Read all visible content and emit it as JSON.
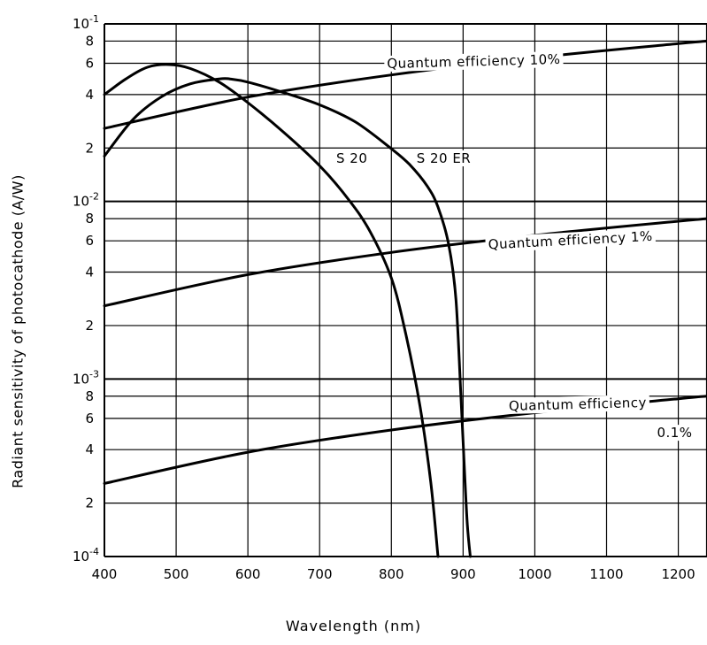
{
  "chart_data": {
    "type": "line",
    "xlabel": "Wavelength (nm)",
    "ylabel": "Radiant sensitivity of photocathode (A/W)",
    "xlim": [
      400,
      1240
    ],
    "ylim": [
      0.0001,
      0.1
    ],
    "y_scale": "log",
    "grid": true,
    "x_ticks": [
      "400",
      "500",
      "600",
      "700",
      "800",
      "900",
      "1000",
      "1100",
      "1200"
    ],
    "x_tick_values": [
      400,
      500,
      600,
      700,
      800,
      900,
      1000,
      1100,
      1200
    ],
    "y_ticks": [
      {
        "value": 0.1,
        "base": "10",
        "exp": "-1"
      },
      {
        "value": 0.08,
        "label": "8"
      },
      {
        "value": 0.06,
        "label": "6"
      },
      {
        "value": 0.04,
        "label": "4"
      },
      {
        "value": 0.02,
        "label": "2"
      },
      {
        "value": 0.01,
        "base": "10",
        "exp": "-2"
      },
      {
        "value": 0.008,
        "label": "8"
      },
      {
        "value": 0.006,
        "label": "6"
      },
      {
        "value": 0.004,
        "label": "4"
      },
      {
        "value": 0.002,
        "label": "2"
      },
      {
        "value": 0.001,
        "base": "10",
        "exp": "-3"
      },
      {
        "value": 0.0008,
        "label": "8"
      },
      {
        "value": 0.0006,
        "label": "6"
      },
      {
        "value": 0.0004,
        "label": "4"
      },
      {
        "value": 0.0002,
        "label": "2"
      },
      {
        "value": 0.0001,
        "base": "10",
        "exp": "-4"
      }
    ],
    "series": [
      {
        "name": "S 20",
        "kind": "spectral",
        "x": [
          400,
          430,
          460,
          490,
          520,
          560,
          600,
          650,
          700,
          740,
          770,
          800,
          820,
          840,
          855,
          865
        ],
        "y": [
          0.04,
          0.049,
          0.057,
          0.059,
          0.056,
          0.047,
          0.036,
          0.0245,
          0.0159,
          0.0103,
          0.0068,
          0.0037,
          0.0018,
          0.0007,
          0.00026,
          0.0001
        ]
      },
      {
        "name": "S 20 ER",
        "kind": "spectral",
        "x": [
          400,
          440,
          480,
          520,
          560,
          575,
          600,
          650,
          700,
          750,
          800,
          825,
          850,
          865,
          880,
          890,
          897,
          902,
          906,
          910
        ],
        "y": [
          0.018,
          0.029,
          0.039,
          0.046,
          0.049,
          0.049,
          0.047,
          0.041,
          0.035,
          0.028,
          0.0198,
          0.0162,
          0.0122,
          0.0093,
          0.0057,
          0.0028,
          0.0008,
          0.0003,
          0.00015,
          0.0001
        ]
      },
      {
        "name": "Quantum efficiency 10%",
        "kind": "qe",
        "x": [
          400,
          600,
          800,
          1000,
          1200,
          1240
        ],
        "y": [
          0.0258,
          0.0387,
          0.0516,
          0.0645,
          0.0774,
          0.08
        ]
      },
      {
        "name": "Quantum efficiency 1%",
        "kind": "qe",
        "x": [
          400,
          600,
          800,
          1000,
          1200,
          1240
        ],
        "y": [
          0.00258,
          0.00387,
          0.00516,
          0.00645,
          0.00774,
          0.008
        ]
      },
      {
        "name": "Quantum efficiency 0.1%",
        "kind": "qe",
        "x": [
          400,
          600,
          800,
          1000,
          1200,
          1240
        ],
        "y": [
          0.000258,
          0.000387,
          0.000516,
          0.000645,
          0.000774,
          0.0008
        ]
      }
    ],
    "annotations": [
      {
        "text": "Quantum efficiency   10%",
        "x": 915,
        "y": 0.058,
        "rotate": -1.5,
        "anchor": "middle"
      },
      {
        "text": "Quantum efficiency  1%",
        "x": 1050,
        "y": 0.0057,
        "rotate": -3,
        "anchor": "middle"
      },
      {
        "text": "Quantum efficiency",
        "x": 1060,
        "y": 0.00068,
        "rotate": -1.5,
        "anchor": "middle"
      },
      {
        "text": "0.1%",
        "x": 1195,
        "y": 0.00047,
        "rotate": 0,
        "anchor": "middle"
      },
      {
        "text": "S 20",
        "x": 745,
        "y": 0.0165,
        "rotate": 0,
        "anchor": "middle"
      },
      {
        "text": "S 20 ER",
        "x": 873,
        "y": 0.0165,
        "rotate": 0,
        "anchor": "middle"
      }
    ]
  }
}
